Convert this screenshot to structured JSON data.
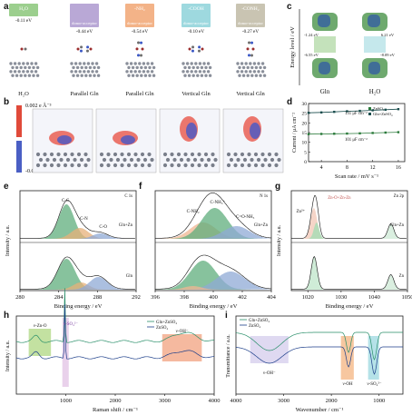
{
  "panels": {
    "a": {
      "letter": "a",
      "boxes": [
        {
          "label": "H₂O",
          "energy": "-0.11 eV",
          "tag": "",
          "color": "#9ccf8e"
        },
        {
          "label": "",
          "energy": "-0.44 eV",
          "tag": "donor-acceptor",
          "color": "#b9a8d6"
        },
        {
          "label": "-NH₂",
          "energy": "-0.54 eV",
          "tag": "donor-acceptor",
          "color": "#f3b388"
        },
        {
          "label": "-COOH",
          "energy": "-0.10 eV",
          "tag": "donor-acceptor",
          "color": "#9ed9df"
        },
        {
          "label": "-CONH₂",
          "energy": "-0.27 eV",
          "tag": "donor-acceptor",
          "color": "#c9c4b2"
        }
      ],
      "xlabels": [
        "H₂O",
        "Parallel Gln",
        "Parallel Gln",
        "Vertical Gln",
        "Vertical Gln"
      ]
    },
    "b": {
      "letter": "b",
      "cbar_top": "0.002 e Å⁻³",
      "cbar_bottom": "-0.002 e Å⁻³"
    },
    "c": {
      "letter": "c",
      "ylabel": "Energy level / eV",
      "xlabels": [
        "Gln",
        "H₂O"
      ],
      "values": [
        "-1.24 eV",
        "6.21 eV",
        "-6.55 eV",
        "-8.09 eV"
      ]
    },
    "d": {
      "letter": "d",
      "ylabel": "Current / μA cm⁻²",
      "xlabel": "Scan rate / mV s⁻¹",
      "legend": [
        "ZnSO₄",
        "Gln+ZnSO₄"
      ],
      "ann": [
        "101 μF cm⁻²",
        "131 μF cm⁻²"
      ]
    },
    "e": {
      "letter": "e",
      "corner": "C 1s",
      "labels": [
        "C-C",
        "C-N",
        "C-O",
        "Gln+Zn",
        "Gln"
      ],
      "ylabel": "Intensity / a.u.",
      "xlabel": "Binding energy / eV"
    },
    "f": {
      "letter": "f",
      "corner": "N 1s",
      "labels": [
        "C-NH₂",
        "C-NH₃⁺",
        "C=O-NH₃",
        "Gln+Zn"
      ],
      "ylabel": "",
      "xlabel": "Binding energy / eV"
    },
    "g": {
      "letter": "g",
      "corner": "Zn 2p",
      "labels": [
        "Zn-O+Zn-Zn",
        "Zn²⁺",
        "Gln+Zn",
        "Zn"
      ],
      "ylabel": "Intensity / a.u.",
      "xlabel": "Binding energy / eV"
    },
    "h": {
      "letter": "h",
      "legend": [
        "Gln+ZnSO₄",
        "ZnSO₄"
      ],
      "labels": [
        "ν-Zn-O",
        "ν-SO₄²⁻",
        "ν-OH⁻"
      ],
      "ylabel": "Intensity / a.u.",
      "xlabel": "Raman shift / cm⁻¹"
    },
    "i": {
      "letter": "i",
      "legend": [
        "Gln+ZnSO₄",
        "ZnSO₄"
      ],
      "labels": [
        "ν-OH⁻",
        "ν-OH",
        "ν-SO₄²⁻"
      ],
      "ylabel": "Transmittance / a.u.",
      "xlabel": "Wavenumber / cm⁻¹"
    }
  },
  "chart_data": [
    {
      "type": "line",
      "panel": "d",
      "xlabel": "Scan rate / mV s⁻¹",
      "ylabel": "Current / μA cm⁻²",
      "x": [
        2,
        4,
        6,
        8,
        10,
        12,
        14,
        16
      ],
      "xticks": [
        4,
        8,
        12,
        16
      ],
      "yticks": [
        0,
        5,
        10,
        15,
        20,
        25,
        30
      ],
      "xlim": [
        2,
        17
      ],
      "ylim": [
        0,
        30
      ],
      "series": [
        {
          "name": "ZnSO₄",
          "color": "#2a7a3a",
          "values": [
            14.2,
            14.3,
            14.4,
            14.5,
            14.6,
            14.8,
            15.0,
            15.2
          ]
        },
        {
          "name": "Gln+ZnSO₄",
          "color": "#1a4d4d",
          "values": [
            25.2,
            25.4,
            25.7,
            26.0,
            26.2,
            26.5,
            26.8,
            27.1
          ]
        }
      ]
    },
    {
      "type": "area",
      "panel": "e",
      "xlim": [
        280,
        292
      ],
      "xticks": [
        280,
        284,
        288,
        292
      ]
    },
    {
      "type": "area",
      "panel": "f",
      "xlim": [
        396,
        404
      ],
      "xticks": [
        396,
        398,
        400,
        402,
        404
      ]
    },
    {
      "type": "line",
      "panel": "g",
      "xlim": [
        1015,
        1050
      ],
      "xticks": [
        1020,
        1030,
        1040,
        1050
      ]
    },
    {
      "type": "line",
      "panel": "h",
      "xlim": [
        0,
        4000
      ],
      "xticks": [
        1000,
        2000,
        3000,
        4000
      ]
    },
    {
      "type": "line",
      "panel": "i",
      "xlim": [
        4000,
        500
      ],
      "xticks": [
        4000,
        3000,
        2000,
        1000
      ]
    }
  ]
}
